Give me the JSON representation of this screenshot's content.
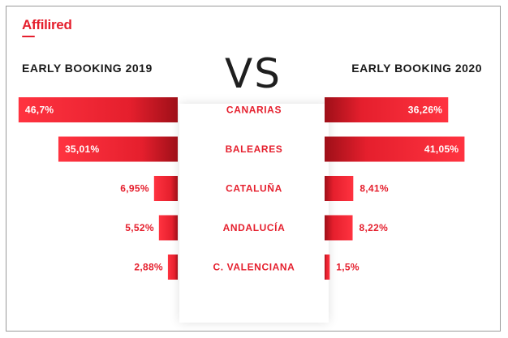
{
  "logo": {
    "text": "Affilired"
  },
  "vs": "VS",
  "chart_data": {
    "type": "bar",
    "categories": [
      "CANARIAS",
      "BALEARES",
      "CATALUÑA",
      "ANDALUCÍA",
      "C. VALENCIANA"
    ],
    "series": [
      {
        "name": "EARLY BOOKING 2019",
        "values": [
          46.7,
          35.01,
          6.95,
          5.52,
          2.88
        ],
        "labels": [
          "46,7%",
          "35,01%",
          "6,95%",
          "5,52%",
          "2,88%"
        ]
      },
      {
        "name": "EARLY BOOKING 2020",
        "values": [
          36.26,
          41.05,
          8.41,
          8.22,
          1.5
        ],
        "labels": [
          "36,26%",
          "41,05%",
          "8,41%",
          "8,22%",
          "1,5%"
        ]
      }
    ],
    "unit": "%",
    "colors": {
      "bar": "#e51f2d",
      "bar_dark": "#b5121b",
      "category": "#e51f2d",
      "label_inside": "#ffffff",
      "label_outside": "#e51f2d"
    }
  }
}
